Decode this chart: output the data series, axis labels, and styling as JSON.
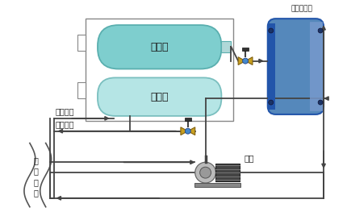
{
  "bg_color": "#ffffff",
  "label_plate_heat_exchanger": "板式换热器",
  "label_compressor": "压缩机",
  "label_evaporator": "蒸发器",
  "label_ac_supply": "空调供水",
  "label_ac_return": "空调回水",
  "label_water_pump": "水泵",
  "label_ground_source": "地\n表\n水\n源",
  "compressor_color": "#7ecece",
  "compressor_edge": "#5aafaf",
  "evaporator_color": "#b5e5e5",
  "evaporator_edge": "#7abfbf",
  "hx_color": "#5588bb",
  "hx_dark": "#2255aa",
  "hx_stripe": "#4070a8",
  "hx_side": "#3366bb",
  "valve_color": "#c8a020",
  "valve_edge": "#806010",
  "valve_blue": "#4488cc",
  "pump_body": "#aaaaaa",
  "pump_dark": "#888888",
  "pump_motor": "#333333",
  "line_color": "#444444",
  "text_color": "#222222"
}
